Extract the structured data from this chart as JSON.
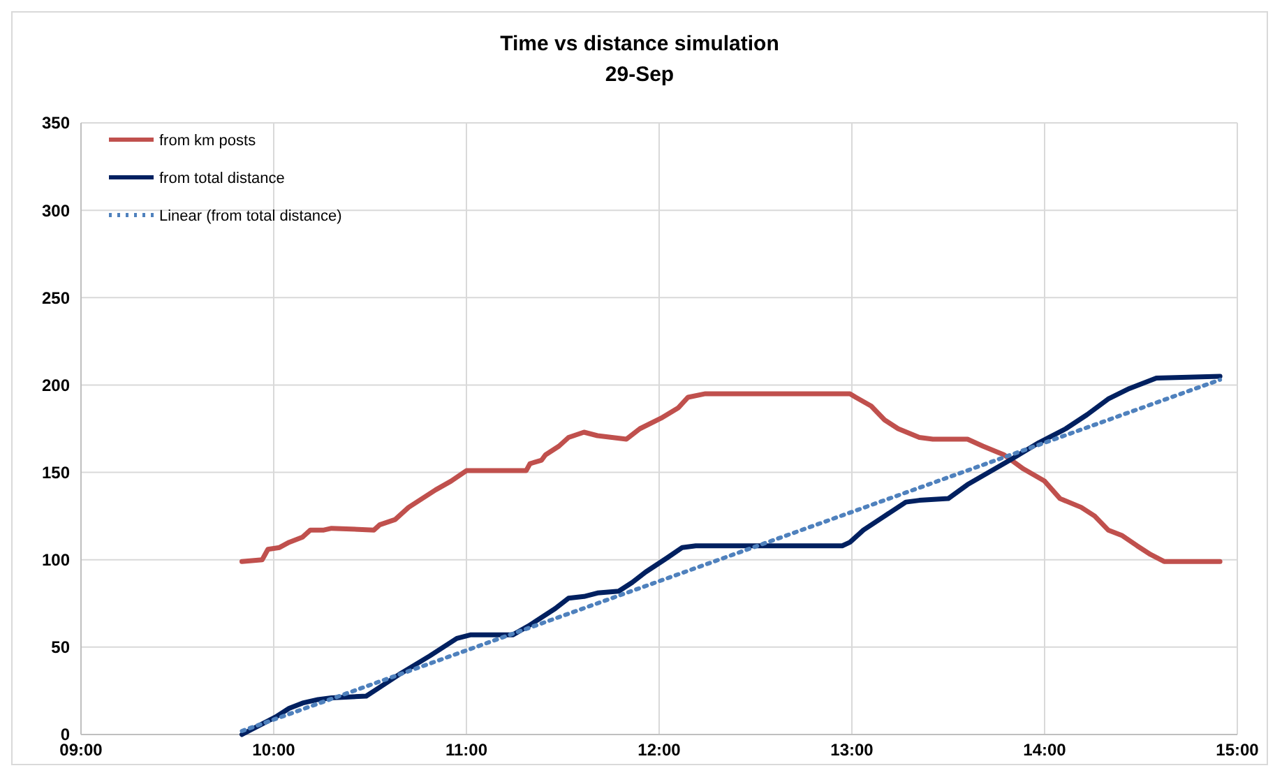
{
  "chart_data": {
    "type": "line",
    "title": "Time vs distance simulation",
    "subtitle": "29-Sep",
    "xlim": [
      9,
      15
    ],
    "xticks": [
      {
        "value": 9,
        "label": "09:00"
      },
      {
        "value": 10,
        "label": "10:00"
      },
      {
        "value": 11,
        "label": "11:00"
      },
      {
        "value": 12,
        "label": "12:00"
      },
      {
        "value": 13,
        "label": "13:00"
      },
      {
        "value": 14,
        "label": "14:00"
      },
      {
        "value": 15,
        "label": "15:00"
      }
    ],
    "ylim": [
      0,
      350
    ],
    "yticks": [
      0,
      50,
      100,
      150,
      200,
      250,
      300,
      350
    ],
    "grid": true,
    "legend": "top left",
    "marker": "none",
    "series": [
      {
        "name": "from km posts",
        "color": "#c0504d",
        "line_style": "solid",
        "x": [
          9.835,
          9.94,
          9.97,
          10.03,
          10.08,
          10.15,
          10.19,
          10.26,
          10.3,
          10.52,
          10.55,
          10.63,
          10.7,
          10.77,
          10.84,
          10.92,
          11.0,
          11.31,
          11.33,
          11.39,
          11.41,
          11.48,
          11.53,
          11.61,
          11.68,
          11.83,
          11.9,
          12.01,
          12.1,
          12.15,
          12.24,
          12.99,
          13.02,
          13.1,
          13.17,
          13.24,
          13.35,
          13.42,
          13.6,
          13.68,
          13.79,
          13.89,
          14.0,
          14.08,
          14.19,
          14.26,
          14.33,
          14.4,
          14.48,
          14.55,
          14.62,
          14.91
        ],
        "values": [
          99,
          100,
          106,
          107,
          110,
          113,
          117,
          117,
          118,
          117,
          120,
          123,
          130,
          135,
          140,
          145,
          151,
          151,
          155,
          157,
          160,
          165,
          170,
          173,
          171,
          169,
          175,
          181,
          187,
          193,
          195,
          195,
          193,
          188,
          180,
          175,
          170,
          169,
          169,
          165,
          160,
          152,
          145,
          135,
          130,
          125,
          117,
          114,
          108,
          103,
          99,
          99
        ]
      },
      {
        "name": "from total distance",
        "color": "#002060",
        "line_style": "solid",
        "x": [
          9.835,
          9.94,
          10.01,
          10.08,
          10.15,
          10.23,
          10.3,
          10.48,
          10.55,
          10.66,
          10.81,
          10.95,
          11.02,
          11.24,
          11.32,
          11.46,
          11.53,
          11.61,
          11.68,
          11.79,
          11.86,
          11.93,
          12.04,
          12.12,
          12.19,
          12.95,
          12.99,
          13.06,
          13.17,
          13.28,
          13.35,
          13.5,
          13.6,
          13.71,
          13.82,
          13.97,
          14.11,
          14.22,
          14.33,
          14.44,
          14.58,
          14.91
        ],
        "values": [
          0,
          6,
          10,
          15,
          18,
          20,
          21,
          22,
          27,
          35,
          45,
          55,
          57,
          57,
          62,
          72,
          78,
          79,
          81,
          82,
          87,
          93,
          101,
          107,
          108,
          108,
          110,
          117,
          125,
          133,
          134,
          135,
          143,
          150,
          157,
          167,
          175,
          183,
          192,
          198,
          204,
          205
        ]
      },
      {
        "name": "Linear (from total distance)",
        "color": "#4f81bd",
        "line_style": "dotted",
        "x": [
          9.835,
          14.91
        ],
        "values": [
          2,
          203
        ]
      }
    ]
  }
}
